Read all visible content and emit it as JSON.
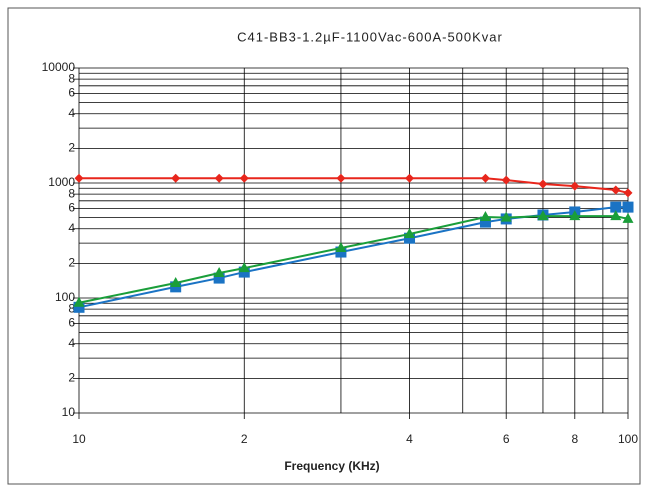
{
  "chart_data": {
    "type": "line",
    "title": "C41-BB3-1.2µF-1100Vac-600A-500Kvar",
    "x_label": "Frequency (KHz)",
    "log_x": true,
    "log_y": true,
    "grid": true,
    "x": [
      10,
      15,
      18,
      20,
      30,
      40,
      55,
      60,
      70,
      80,
      95,
      100
    ],
    "series": [
      {
        "color": "#e8261c",
        "marker": "diamond",
        "values": [
          1100,
          1100,
          1100,
          1100,
          1100,
          1100,
          1100,
          1060,
          980,
          940,
          870,
          820
        ]
      },
      {
        "color": "#1a73c4",
        "marker": "square",
        "values": [
          83,
          125,
          149,
          168,
          251,
          331,
          457,
          487,
          527,
          560,
          617,
          617
        ]
      },
      {
        "color": "#1a9e3a",
        "marker": "triangle",
        "values": [
          91,
          135,
          165,
          182,
          272,
          360,
          506,
          500,
          515,
          515,
          515,
          487
        ]
      }
    ],
    "xlim": [
      10,
      100
    ],
    "xticks": [
      10,
      {
        "value": 20,
        "label": "2"
      },
      {
        "value": 40,
        "label": "4"
      },
      {
        "value": 60,
        "label": "6"
      },
      {
        "value": 80,
        "label": "8"
      },
      100
    ],
    "x_minor_grid": [
      30,
      50,
      70,
      90
    ],
    "ylim": [
      10,
      10000
    ],
    "yticks": [
      10,
      {
        "value": 20,
        "label": "2"
      },
      {
        "value": 40,
        "label": "4"
      },
      {
        "value": 60,
        "label": "6"
      },
      {
        "value": 80,
        "label": "8"
      },
      100,
      {
        "value": 200,
        "label": "2"
      },
      {
        "value": 400,
        "label": "4"
      },
      {
        "value": 600,
        "label": "6"
      },
      {
        "value": 800,
        "label": "8"
      },
      1000,
      {
        "value": 2000,
        "label": "2"
      },
      {
        "value": 4000,
        "label": "4"
      },
      {
        "value": 6000,
        "label": "6"
      },
      {
        "value": 8000,
        "label": "8"
      },
      10000
    ],
    "y_minor_grid": [
      30,
      50,
      70,
      90,
      300,
      500,
      700,
      900,
      3000,
      5000,
      7000,
      9000
    ]
  }
}
